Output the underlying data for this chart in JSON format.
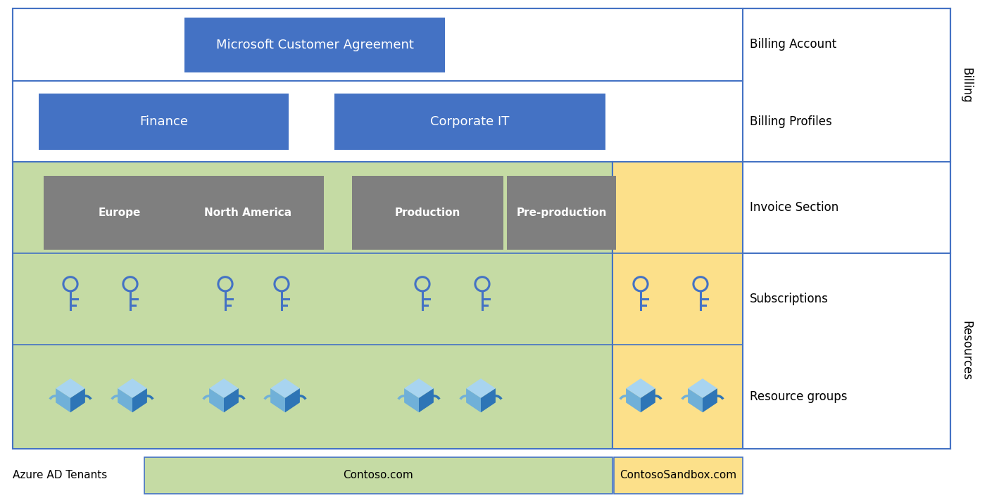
{
  "fig_width": 14.19,
  "fig_height": 7.08,
  "bg_color": "#ffffff",
  "border_color": "#4472c4",
  "blue_box_color": "#4472c4",
  "gray_box_color": "#7f7f7f",
  "green_bg_color": "#c5dba4",
  "yellow_bg_color": "#fce08a",
  "title": "Microsoft Customer Agreement",
  "billing_profiles": [
    "Finance",
    "Corporate IT"
  ],
  "invoice_sections": [
    "Europe",
    "North America",
    "Production",
    "Pre-production"
  ],
  "row_labels": [
    "Billing Account",
    "Billing Profiles",
    "Invoice Section",
    "Subscriptions",
    "Resource groups"
  ],
  "side_billing": "Billing",
  "side_resources": "Resources",
  "tenant_label": "Azure AD Tenants",
  "contoso_label": "Contoso.com",
  "sandbox_label": "ContosoSandbox.com",
  "key_color": "#4472c4",
  "box_color_light": "#70b0d8",
  "box_color_dark": "#2e75b6",
  "box_color_top": "#a8d4f0"
}
